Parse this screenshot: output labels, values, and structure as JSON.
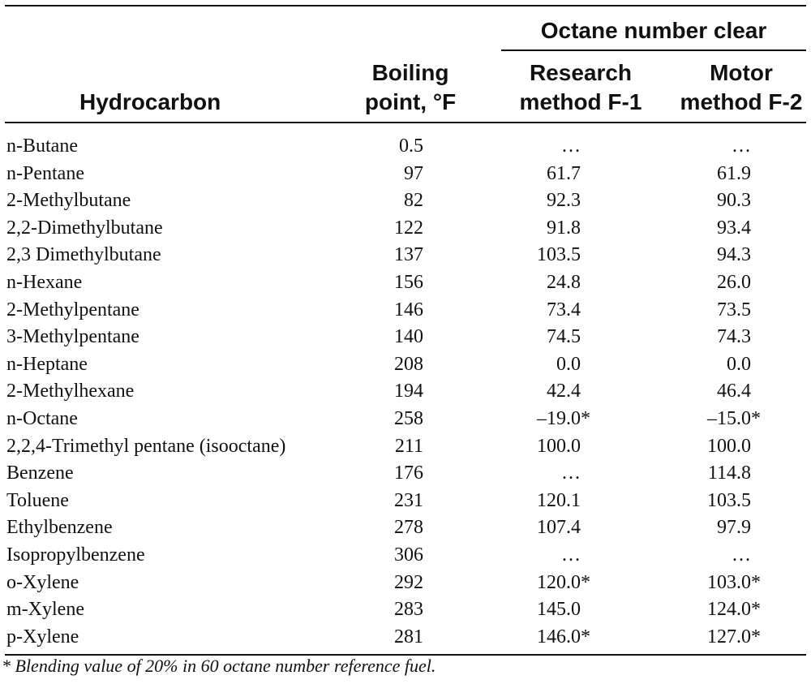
{
  "header": {
    "group_title": "Octane number clear",
    "col_hydrocarbon": "Hydrocarbon",
    "col_boiling_line1": "Boiling",
    "col_boiling_line2": "point, °F",
    "col_research_line1": "Research",
    "col_research_line2": "method F-1",
    "col_motor_line1": "Motor",
    "col_motor_line2": "method F-2"
  },
  "rows": [
    {
      "name": "n-Butane",
      "bp": "0.5",
      "rm": "…",
      "rm_star": "",
      "mm": "…",
      "mm_star": ""
    },
    {
      "name": "n-Pentane",
      "bp": "97",
      "rm": "61.7",
      "rm_star": "",
      "mm": "61.9",
      "mm_star": ""
    },
    {
      "name": "2-Methylbutane",
      "bp": "82",
      "rm": "92.3",
      "rm_star": "",
      "mm": "90.3",
      "mm_star": ""
    },
    {
      "name": "2,2-Dimethylbutane",
      "bp": "122",
      "rm": "91.8",
      "rm_star": "",
      "mm": "93.4",
      "mm_star": ""
    },
    {
      "name": "2,3 Dimethylbutane",
      "bp": "137",
      "rm": "103.5",
      "rm_star": "",
      "mm": "94.3",
      "mm_star": ""
    },
    {
      "name": "n-Hexane",
      "bp": "156",
      "rm": "24.8",
      "rm_star": "",
      "mm": "26.0",
      "mm_star": ""
    },
    {
      "name": "2-Methylpentane",
      "bp": "146",
      "rm": "73.4",
      "rm_star": "",
      "mm": "73.5",
      "mm_star": ""
    },
    {
      "name": "3-Methylpentane",
      "bp": "140",
      "rm": "74.5",
      "rm_star": "",
      "mm": "74.3",
      "mm_star": ""
    },
    {
      "name": "n-Heptane",
      "bp": "208",
      "rm": "0.0",
      "rm_star": "",
      "mm": "0.0",
      "mm_star": ""
    },
    {
      "name": "2-Methylhexane",
      "bp": "194",
      "rm": "42.4",
      "rm_star": "",
      "mm": "46.4",
      "mm_star": ""
    },
    {
      "name": "n-Octane",
      "bp": "258",
      "rm": "–19.0",
      "rm_star": "*",
      "mm": "–15.0",
      "mm_star": "*"
    },
    {
      "name": "2,2,4-Trimethyl pentane (isooctane)",
      "bp": "211",
      "rm": "100.0",
      "rm_star": "",
      "mm": "100.0",
      "mm_star": ""
    },
    {
      "name": "Benzene",
      "bp": "176",
      "rm": "…",
      "rm_star": "",
      "mm": "114.8",
      "mm_star": ""
    },
    {
      "name": "Toluene",
      "bp": "231",
      "rm": "120.1",
      "rm_star": "",
      "mm": "103.5",
      "mm_star": ""
    },
    {
      "name": "Ethylbenzene",
      "bp": "278",
      "rm": "107.4",
      "rm_star": "",
      "mm": "97.9",
      "mm_star": ""
    },
    {
      "name": "Isopropylbenzene",
      "bp": "306",
      "rm": "…",
      "rm_star": "",
      "mm": "…",
      "mm_star": ""
    },
    {
      "name": "o-Xylene",
      "bp": "292",
      "rm": "120.0",
      "rm_star": "*",
      "mm": "103.0",
      "mm_star": "*"
    },
    {
      "name": "m-Xylene",
      "bp": "283",
      "rm": "145.0",
      "rm_star": "",
      "mm": "124.0",
      "mm_star": "*"
    },
    {
      "name": "p-Xylene",
      "bp": "281",
      "rm": "146.0",
      "rm_star": "*",
      "mm": "127.0",
      "mm_star": "*"
    }
  ],
  "footnote": "* Blending value of 20% in 60 octane number reference fuel."
}
